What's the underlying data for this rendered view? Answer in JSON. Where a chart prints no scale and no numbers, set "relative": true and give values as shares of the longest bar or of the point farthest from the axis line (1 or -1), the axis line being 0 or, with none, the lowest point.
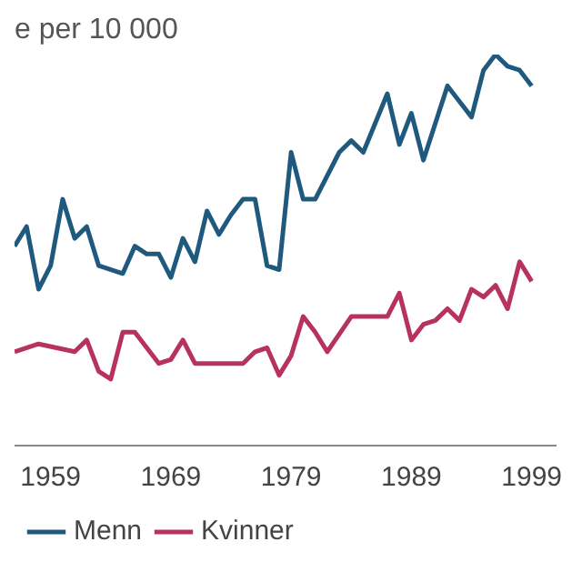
{
  "chart_data": {
    "type": "line",
    "ylabel": "e per 10 000",
    "relative": true,
    "xlim": [
      1956,
      2001
    ],
    "xticks": [
      1959,
      1969,
      1979,
      1989,
      1999
    ],
    "legend": "bottom",
    "marker": "none",
    "line_style": "solid",
    "series": [
      {
        "name": "Menn",
        "color": "#1f5a7e",
        "x": [
          1956,
          1957,
          1958,
          1959,
          1960,
          1961,
          1962,
          1963,
          1965,
          1966,
          1967,
          1968,
          1969,
          1970,
          1971,
          1972,
          1973,
          1974,
          1975,
          1976,
          1977,
          1978,
          1979,
          1980,
          1981,
          1983,
          1984,
          1985,
          1987,
          1988,
          1989,
          1990,
          1992,
          1994,
          1995,
          1996,
          1997,
          1998,
          1999
        ],
        "values": [
          0.51,
          0.56,
          0.4,
          0.46,
          0.63,
          0.53,
          0.56,
          0.46,
          0.44,
          0.51,
          0.49,
          0.49,
          0.43,
          0.53,
          0.47,
          0.6,
          0.54,
          0.59,
          0.63,
          0.63,
          0.46,
          0.45,
          0.75,
          0.63,
          0.63,
          0.75,
          0.78,
          0.75,
          0.9,
          0.77,
          0.85,
          0.73,
          0.92,
          0.84,
          0.96,
          1,
          0.97,
          0.96,
          0.92
        ]
      },
      {
        "name": "Kvinner",
        "color": "#b8325e",
        "x": [
          1956,
          1958,
          1961,
          1962,
          1963,
          1964,
          1965,
          1966,
          1968,
          1969,
          1970,
          1971,
          1975,
          1976,
          1977,
          1978,
          1979,
          1980,
          1981,
          1982,
          1984,
          1987,
          1988,
          1989,
          1990,
          1991,
          1992,
          1993,
          1994,
          1995,
          1996,
          1997,
          1998,
          1999
        ],
        "values": [
          0.24,
          0.26,
          0.24,
          0.27,
          0.19,
          0.17,
          0.29,
          0.29,
          0.21,
          0.22,
          0.27,
          0.21,
          0.21,
          0.24,
          0.25,
          0.18,
          0.23,
          0.33,
          0.29,
          0.24,
          0.33,
          0.33,
          0.39,
          0.27,
          0.31,
          0.32,
          0.35,
          0.32,
          0.4,
          0.38,
          0.41,
          0.35,
          0.47,
          0.42
        ]
      }
    ]
  }
}
